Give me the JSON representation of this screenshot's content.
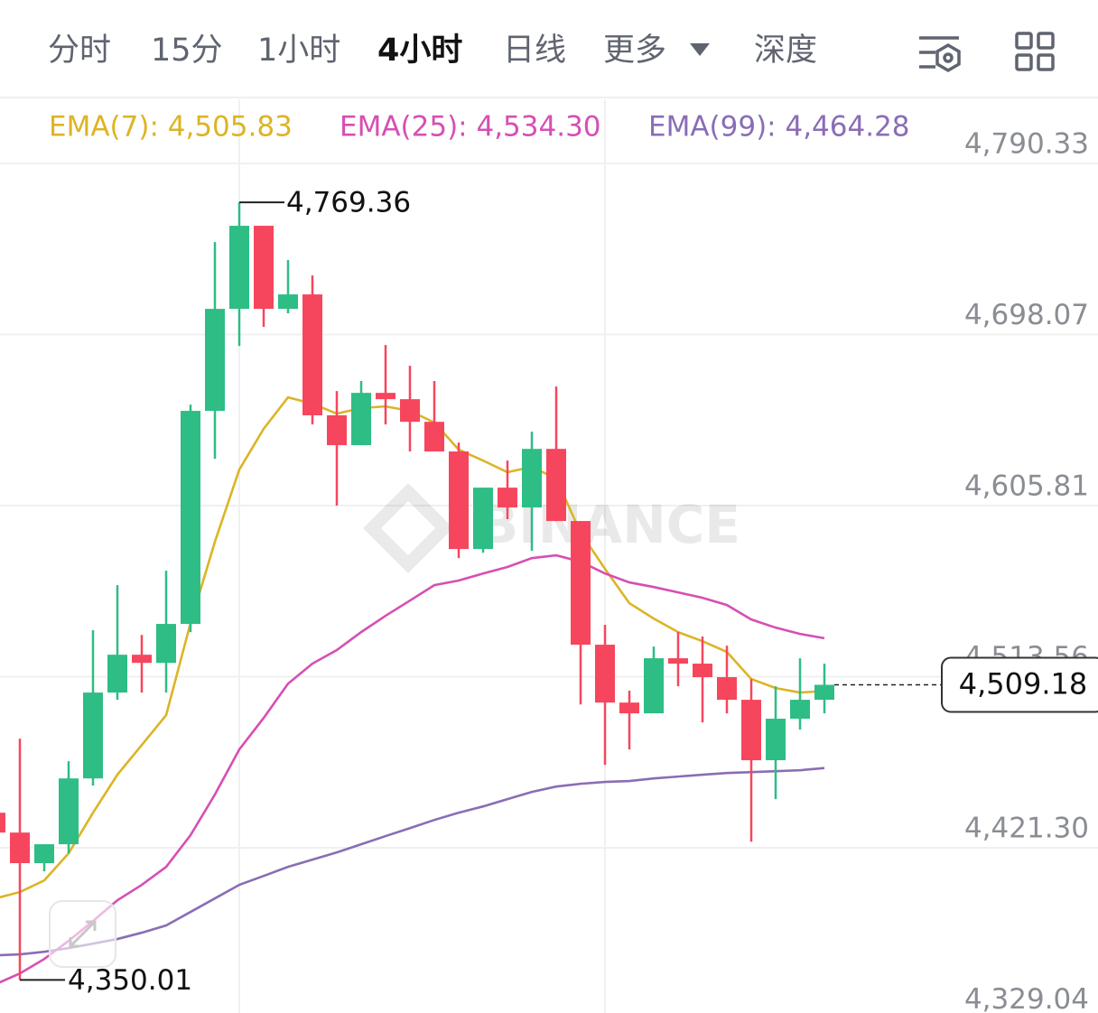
{
  "chart_data": {
    "type": "candlestick",
    "tabs": [
      "分时",
      "15分",
      "1小时",
      "4小时",
      "日线",
      "更多",
      "深度"
    ],
    "active_tab": 3,
    "watermark": "BINANCE",
    "up_color": "#2ebd85",
    "down_color": "#f6465d",
    "ylim": [
      4332.2,
      4824.9
    ],
    "yticks": [
      {
        "value": 4790.33,
        "label": "4,790.33"
      },
      {
        "value": 4698.07,
        "label": "4,698.07"
      },
      {
        "value": 4605.81,
        "label": "4,605.81"
      },
      {
        "value": 4513.56,
        "label": "4,513.56"
      },
      {
        "value": 4421.3,
        "label": "4,421.30"
      },
      {
        "value": 4329.04,
        "label": "4,329.04"
      }
    ],
    "grid": true,
    "candles": {
      "open": [
        4440.2,
        4429.5,
        4413.0,
        4423.2,
        4458.7,
        4505.0,
        4525.4,
        4521.0,
        4542.0,
        4656.9,
        4711.9,
        4756.7,
        4711.9,
        4719.7,
        4654.5,
        4638.4,
        4666.6,
        4663.2,
        4651.0,
        4635.0,
        4582.4,
        4615.5,
        4604.8,
        4636.4,
        4597.5,
        4530.8,
        4499.6,
        4493.8,
        4523.5,
        4520.6,
        4513.3,
        4501.1,
        4468.5,
        4490.9,
        4501.1
      ],
      "high": [
        4440.2,
        4480.1,
        4423.2,
        4468.0,
        4538.6,
        4562.9,
        4536.1,
        4570.7,
        4660.3,
        4747.9,
        4769.36,
        4756.7,
        4738.2,
        4729.9,
        4667.6,
        4673.0,
        4692.4,
        4681.2,
        4673.0,
        4639.8,
        4615.5,
        4630.1,
        4645.7,
        4670.0,
        4597.5,
        4541.5,
        4506.0,
        4529.8,
        4537.6,
        4535.2,
        4530.3,
        4512.3,
        4508.4,
        4523.5,
        4520.6
      ],
      "low": [
        4429.5,
        4350.01,
        4408.6,
        4418.3,
        4454.8,
        4501.1,
        4505.0,
        4505.0,
        4537.6,
        4631.1,
        4691.9,
        4702.2,
        4709.5,
        4649.6,
        4605.8,
        4638.4,
        4649.6,
        4635.0,
        4635.0,
        4577.5,
        4580.4,
        4598.5,
        4581.4,
        4597.5,
        4498.6,
        4466.0,
        4474.3,
        4493.8,
        4508.4,
        4488.9,
        4493.8,
        4424.6,
        4447.5,
        4485.0,
        4493.8
      ],
      "close": [
        4429.5,
        4413.0,
        4423.2,
        4458.7,
        4505.0,
        4525.4,
        4521.0,
        4542.0,
        4656.9,
        4711.9,
        4756.7,
        4711.9,
        4719.7,
        4654.5,
        4638.4,
        4666.6,
        4663.2,
        4651.0,
        4635.0,
        4582.4,
        4615.5,
        4604.8,
        4636.4,
        4597.5,
        4530.8,
        4499.6,
        4493.8,
        4523.5,
        4520.6,
        4513.3,
        4501.1,
        4468.5,
        4490.9,
        4501.1,
        4509.18
      ]
    },
    "series": [
      {
        "label": "EMA(7): 4,505.83",
        "color": "#dcb425",
        "values": [
          4394.0,
          4397.4,
          4403.7,
          4418.3,
          4440.2,
          4460.7,
          4476.7,
          4492.8,
          4542.5,
          4586.3,
          4625.2,
          4647.2,
          4664.2,
          4660.8,
          4655.4,
          4658.4,
          4659.3,
          4656.9,
          4650.6,
          4636.0,
          4630.1,
          4623.8,
          4626.7,
          4620.4,
          4591.2,
          4571.7,
          4553.2,
          4544.9,
          4537.6,
          4532.7,
          4526.9,
          4512.3,
          4507.4,
          4505.0,
          4505.83
        ]
      },
      {
        "label": "EMA(25): 4,534.30",
        "color": "#d64fb4",
        "values": [
          4347.7,
          4353.5,
          4361.3,
          4371.1,
          4381.8,
          4393.0,
          4401.3,
          4411.0,
          4428.1,
          4450.0,
          4474.3,
          4491.3,
          4509.8,
          4520.6,
          4527.9,
          4537.6,
          4546.4,
          4554.6,
          4562.9,
          4565.4,
          4569.2,
          4572.7,
          4577.5,
          4579.0,
          4575.6,
          4569.2,
          4564.4,
          4561.9,
          4559.0,
          4556.1,
          4552.2,
          4544.4,
          4540.0,
          4536.6,
          4534.3
        ]
      },
      {
        "label": "EMA(99): 4,464.28",
        "color": "#8a6db5",
        "values": [
          4363.3,
          4363.8,
          4365.2,
          4367.2,
          4369.6,
          4372.1,
          4375.5,
          4379.4,
          4386.7,
          4394.0,
          4401.3,
          4406.1,
          4411.0,
          4414.9,
          4418.8,
          4423.2,
          4427.6,
          4431.9,
          4436.3,
          4440.2,
          4443.6,
          4447.5,
          4451.4,
          4454.3,
          4455.8,
          4456.8,
          4457.3,
          4458.7,
          4459.7,
          4460.7,
          4461.6,
          4462.1,
          4462.6,
          4463.1,
          4464.28
        ]
      }
    ],
    "high_marker": {
      "value": 4769.36,
      "label": "4,769.36"
    },
    "low_marker": {
      "value": 4350.01,
      "label": "4,350.01"
    },
    "last_price": {
      "value": 4509.18,
      "label": "4,509.18"
    }
  }
}
